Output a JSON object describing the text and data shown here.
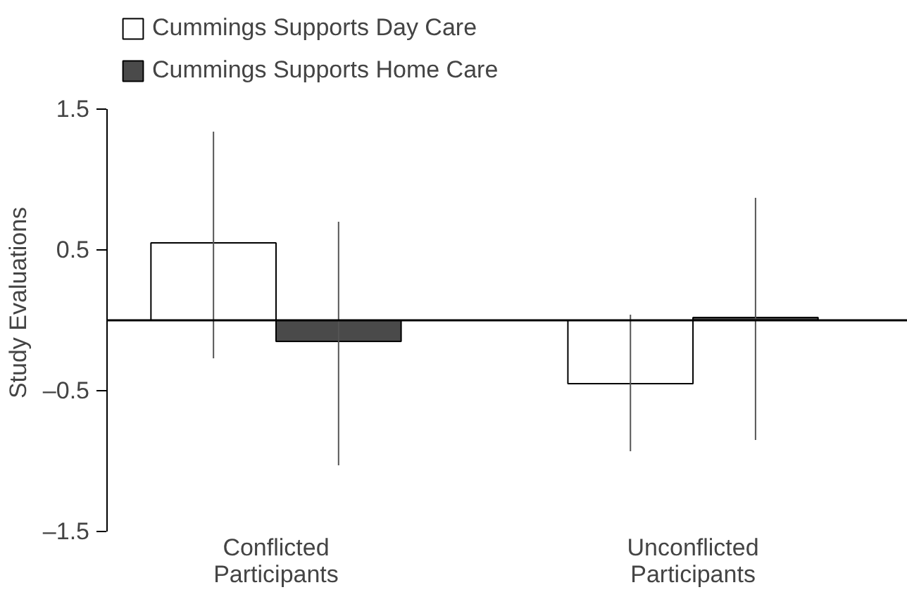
{
  "chart_data": {
    "type": "bar",
    "ylabel": "Study Evaluations",
    "categories": [
      "Conflicted\nParticipants",
      "Unconflicted\nParticipants"
    ],
    "series": [
      {
        "name": "Cummings Supports Day Care",
        "color": "#ffffff",
        "values": [
          0.55,
          -0.45
        ],
        "errors": [
          [
            -0.27,
            1.34
          ],
          [
            -0.93,
            0.04
          ]
        ]
      },
      {
        "name": "Cummings Supports Home Care",
        "color": "#4a4a4a",
        "values": [
          -0.15,
          0.02
        ],
        "errors": [
          [
            -1.03,
            0.7
          ],
          [
            -0.85,
            0.87
          ]
        ]
      }
    ],
    "ylim": [
      -1.5,
      1.5
    ],
    "yticks": [
      1.5,
      0.5,
      {
        "value": -0.5,
        "label": "–0.5"
      },
      {
        "value": -1.5,
        "label": "–1.5"
      }
    ],
    "grid": false,
    "legend": "top left"
  }
}
